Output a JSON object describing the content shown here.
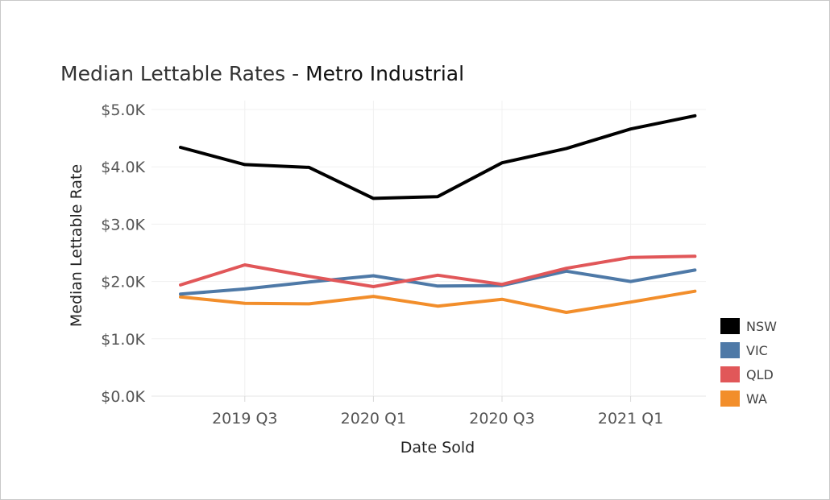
{
  "chart_data": {
    "type": "line",
    "title": "Median Lettable Rates - ",
    "subtitle": "Metro Industrial",
    "xlabel": "Date Sold",
    "ylabel": "Median Lettable Rate",
    "x_tick_labels": [
      "2019 Q3",
      "2020 Q1",
      "2020 Q3",
      "2021 Q1"
    ],
    "y_tick_labels": [
      "$0.0K",
      "$1.0K",
      "$2.0K",
      "$3.0K",
      "$4.0K",
      "$5.0K"
    ],
    "ylim": [
      0,
      5000
    ],
    "grid": true,
    "legend_position": "right",
    "x": [
      "2019 Q2",
      "2019 Q3",
      "2019 Q4",
      "2020 Q1",
      "2020 Q2",
      "2020 Q3",
      "2020 Q4",
      "2021 Q1",
      "2021 Q2"
    ],
    "series": [
      {
        "name": "NSW",
        "color": "#000000",
        "values": [
          4340,
          4040,
          3990,
          3450,
          3480,
          4070,
          4320,
          4660,
          4890
        ]
      },
      {
        "name": "VIC",
        "color": "#4e79a7",
        "values": [
          1780,
          1870,
          1990,
          2100,
          1920,
          1930,
          2180,
          2000,
          2200
        ]
      },
      {
        "name": "QLD",
        "color": "#e15759",
        "values": [
          1940,
          2290,
          2090,
          1910,
          2110,
          1950,
          2230,
          2420,
          2440
        ]
      },
      {
        "name": "WA",
        "color": "#f28e2b",
        "values": [
          1730,
          1620,
          1610,
          1740,
          1570,
          1690,
          1460,
          1640,
          1830
        ]
      }
    ]
  }
}
